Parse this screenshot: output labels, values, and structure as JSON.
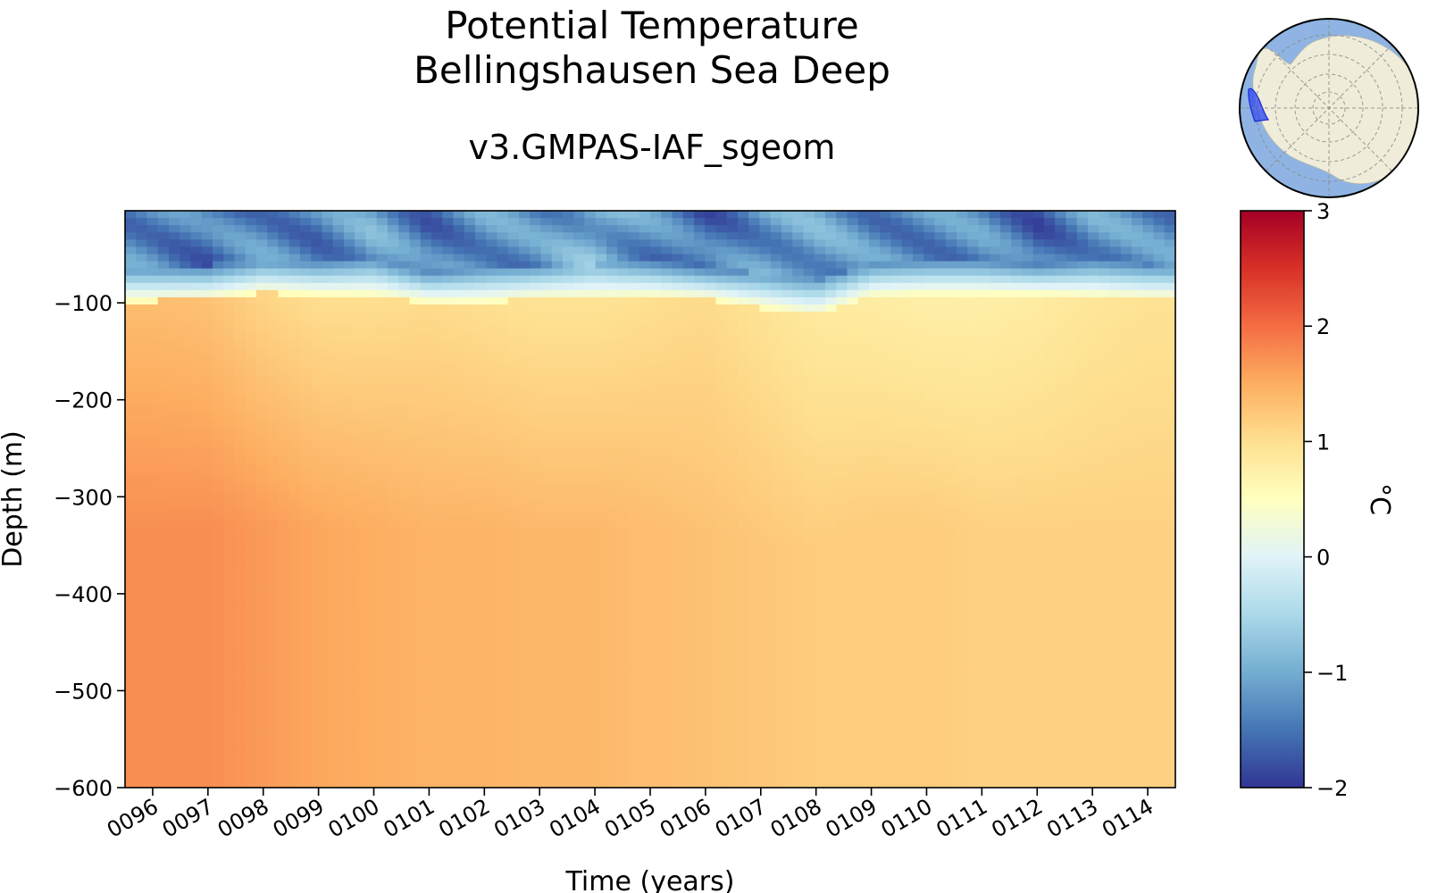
{
  "chart_data": {
    "type": "heatmap",
    "title": "Potential Temperature",
    "region": "Bellingshausen Sea Deep",
    "subtitle": "v3.GMPAS-IAF_sgeom",
    "xlabel": "Time (years)",
    "ylabel": "Depth (m)",
    "x_ticks": [
      "0096",
      "0097",
      "0098",
      "0099",
      "0100",
      "0101",
      "0102",
      "0103",
      "0104",
      "0105",
      "0106",
      "0107",
      "0108",
      "0109",
      "0110",
      "0111",
      "0112",
      "0113",
      "0114"
    ],
    "x_range": [
      95.5,
      114.5
    ],
    "y_ticks": [
      -100,
      -200,
      -300,
      -400,
      -500,
      -600
    ],
    "y_tick_labels": [
      "−100",
      "−200",
      "−300",
      "−400",
      "−500",
      "−600"
    ],
    "ylim": [
      -600,
      -5
    ],
    "colorbar": {
      "label": "°C",
      "vmin": -2,
      "vmax": 3,
      "ticks": [
        3,
        2,
        1,
        0,
        -1,
        -2
      ],
      "tick_labels": [
        "3",
        "2",
        "1",
        "0",
        "−1",
        "−2"
      ],
      "colormap": "RdYlBu_r"
    },
    "thermocline_depth_by_year": [
      -88,
      -86,
      -80,
      -82,
      -83,
      -90,
      -90,
      -86,
      -86,
      -84,
      -86,
      -95,
      -103,
      -84,
      -82,
      -82,
      -82,
      -84,
      -86
    ],
    "surface_temp_by_year": [
      -1.3,
      -1.5,
      -1.3,
      -1.4,
      -1.1,
      -1.5,
      -1.2,
      -1.3,
      -0.9,
      -1.3,
      -1.6,
      -1.2,
      -1.1,
      -1.3,
      -1.3,
      -1.3,
      -1.6,
      -1.2,
      -1.3
    ],
    "deep_temp_by_year": [
      1.75,
      1.75,
      1.65,
      1.55,
      1.5,
      1.45,
      1.45,
      1.4,
      1.4,
      1.35,
      1.3,
      1.25,
      1.2,
      1.2,
      1.2,
      1.15,
      1.15,
      1.15,
      1.15
    ],
    "upper_temp_by_year": [
      1.35,
      1.3,
      1.1,
      1.0,
      1.0,
      1.05,
      1.0,
      0.95,
      0.95,
      1.0,
      1.05,
      0.95,
      0.85,
      0.8,
      0.75,
      0.75,
      0.8,
      0.9,
      0.95
    ]
  },
  "inset_map": {
    "description_icon": "antarctica-locator-icon",
    "ocean_color": "#8fb4e3",
    "land_color": "#efedda",
    "region_color": "#3b53f0"
  }
}
